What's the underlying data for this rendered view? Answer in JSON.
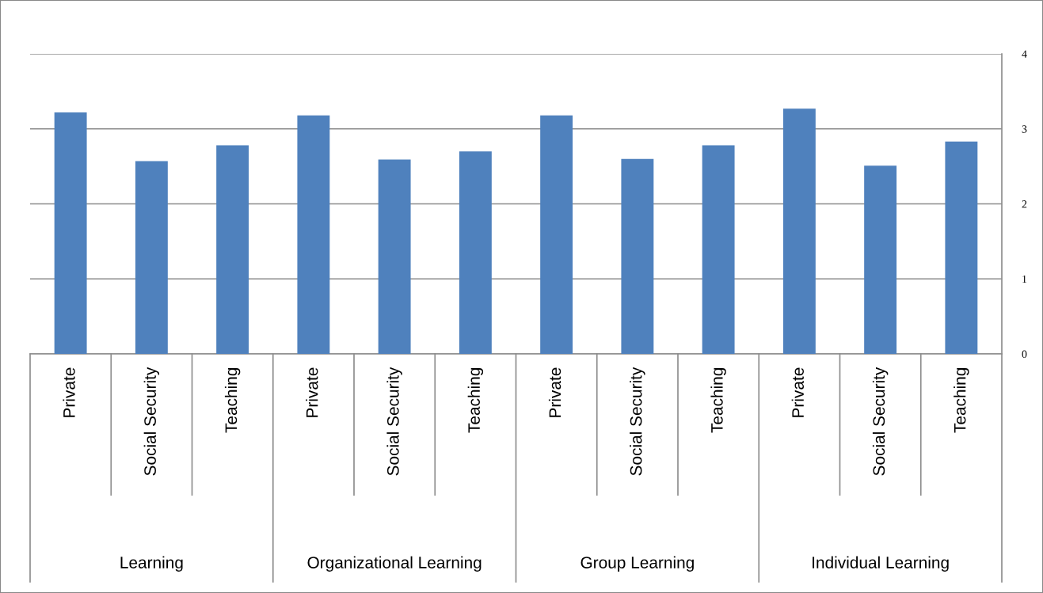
{
  "chart_data": {
    "type": "bar",
    "categories": [
      "Private",
      "Social Security",
      "Teaching",
      "Private",
      "Social Security",
      "Teaching",
      "Private",
      "Social Security",
      "Teaching",
      "Private",
      "Social Security",
      "Teaching"
    ],
    "annotations": [
      "Learning",
      "Organizational Learning",
      "Group Learning",
      "Individual Learning"
    ],
    "values": [
      3.22,
      2.57,
      2.78,
      3.18,
      2.59,
      2.7,
      3.18,
      2.6,
      2.78,
      3.27,
      2.51,
      2.83
    ],
    "color": "#4f81bd",
    "ylim": [
      0,
      4
    ],
    "yticks": [
      0,
      1,
      2,
      3,
      4
    ],
    "grid": "y",
    "legend": false
  }
}
